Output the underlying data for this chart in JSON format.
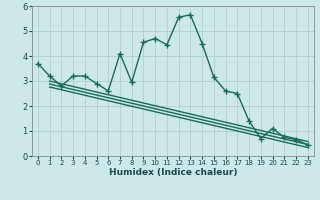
{
  "xlabel": "Humidex (Indice chaleur)",
  "bg_color": "#cce8e8",
  "grid_color": "#b0d0d0",
  "line_color": "#1a6b5a",
  "xlim": [
    -0.5,
    23.5
  ],
  "ylim": [
    0,
    6
  ],
  "xticks": [
    0,
    1,
    2,
    3,
    4,
    5,
    6,
    7,
    8,
    9,
    10,
    11,
    12,
    13,
    14,
    15,
    16,
    17,
    18,
    19,
    20,
    21,
    22,
    23
  ],
  "yticks": [
    0,
    1,
    2,
    3,
    4,
    5,
    6
  ],
  "main_x": [
    0,
    1,
    2,
    3,
    4,
    5,
    6,
    7,
    8,
    9,
    10,
    11,
    12,
    13,
    14,
    15,
    16,
    17,
    18,
    19,
    20,
    21,
    22,
    23
  ],
  "main_y": [
    3.7,
    3.2,
    2.8,
    3.2,
    3.2,
    2.9,
    2.6,
    4.1,
    2.95,
    4.55,
    4.7,
    4.45,
    5.55,
    5.65,
    4.5,
    3.15,
    2.6,
    2.5,
    1.4,
    0.7,
    1.1,
    0.75,
    0.65,
    0.45
  ],
  "line2_x": [
    1,
    23
  ],
  "line2_y": [
    3.0,
    0.58
  ],
  "line3_x": [
    1,
    23
  ],
  "line3_y": [
    2.88,
    0.46
  ],
  "line4_x": [
    1,
    23
  ],
  "line4_y": [
    2.76,
    0.34
  ],
  "marker": "+",
  "markersize": 5,
  "linewidth": 1.0
}
